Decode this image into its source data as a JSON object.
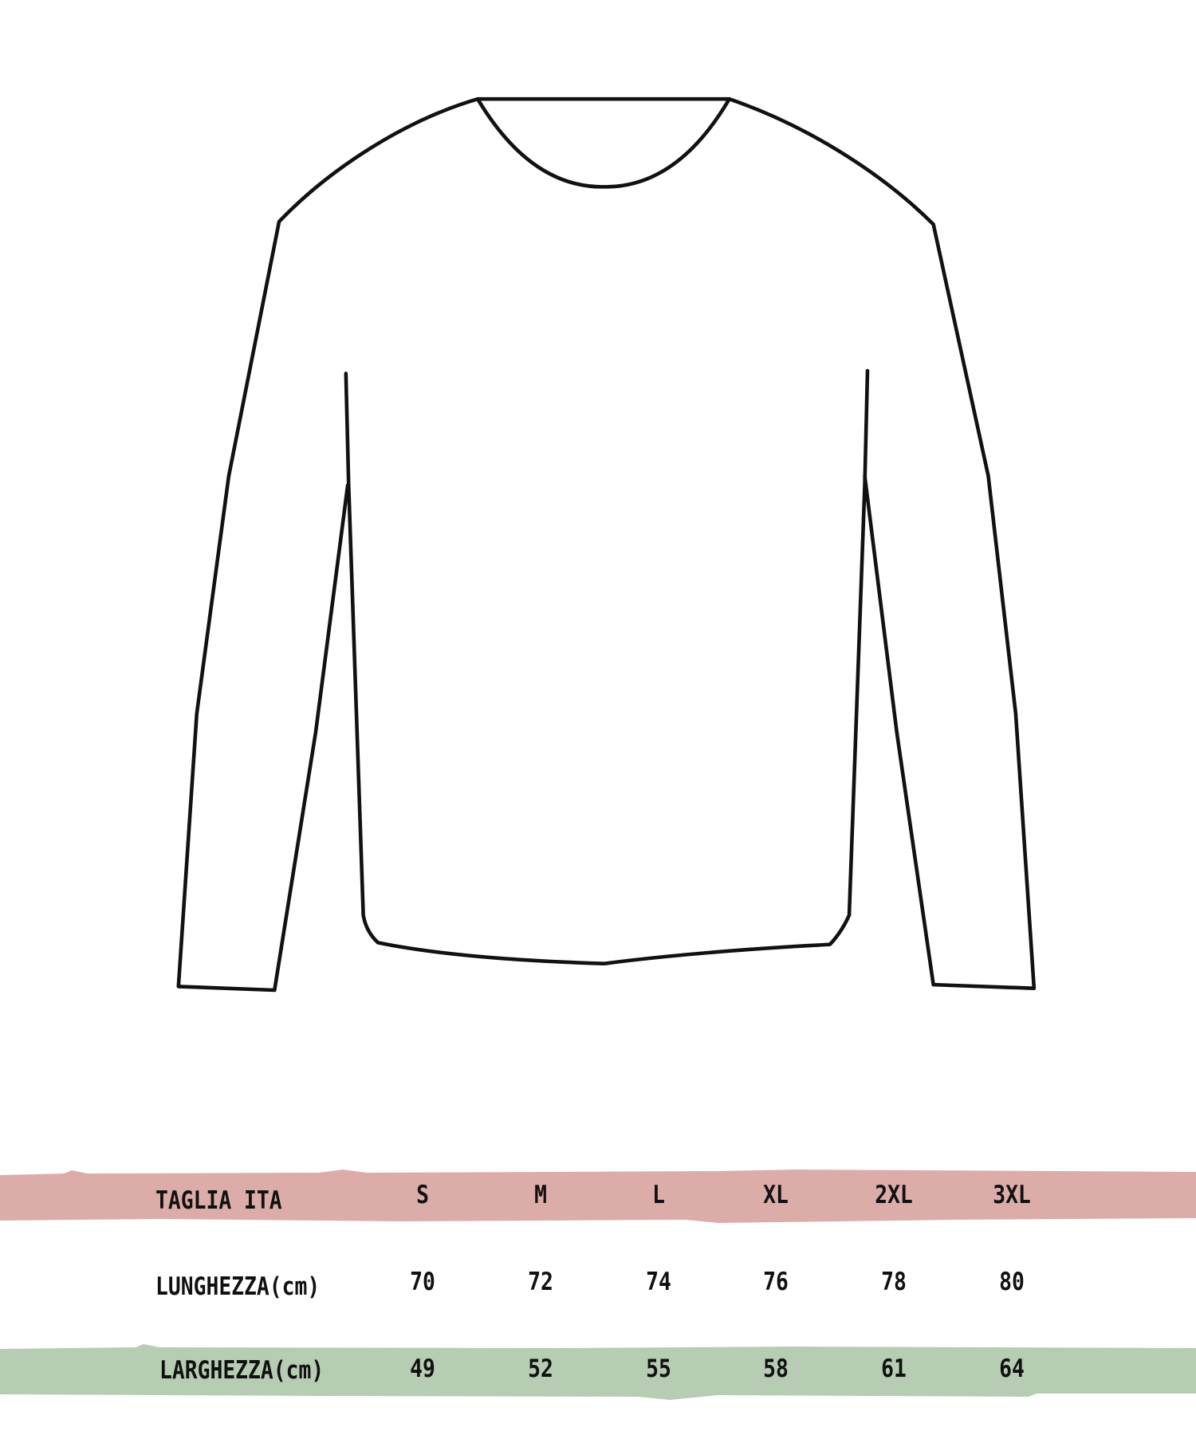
{
  "colors": {
    "header_band": "#dcaca9",
    "width_band": "#b7cdb3",
    "outline": "#111111"
  },
  "illustration": "long-sleeve-sweater-outline",
  "size_table": {
    "header": {
      "label": "TAGLIA ITA",
      "sizes": [
        "S",
        "M",
        "L",
        "XL",
        "2XL",
        "3XL"
      ]
    },
    "rows": [
      {
        "label": "LUNGHEZZA(cm)",
        "values": [
          "70",
          "72",
          "74",
          "76",
          "78",
          "80"
        ]
      },
      {
        "label": "LARGHEZZA(cm)",
        "values": [
          "49",
          "52",
          "55",
          "58",
          "61",
          "64"
        ]
      }
    ]
  }
}
